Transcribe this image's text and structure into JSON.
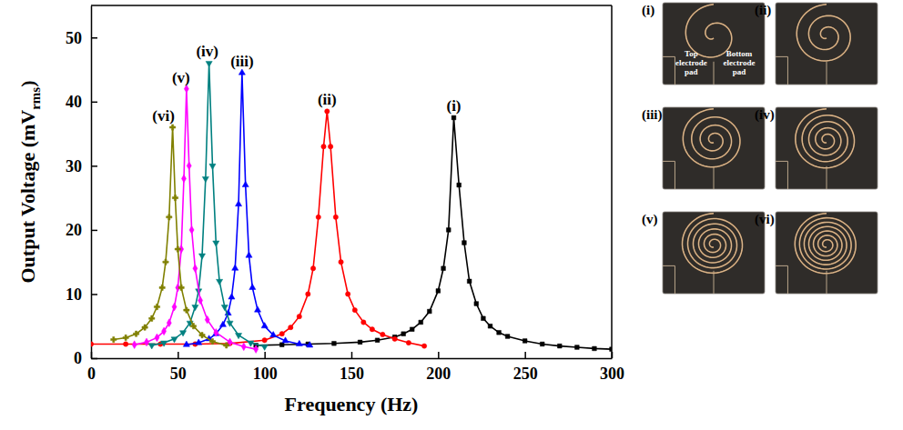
{
  "chart_data": {
    "type": "line",
    "x_label": "Frequency (Hz)",
    "y_label": [
      "Output Voltage (mV",
      "rms",
      ")"
    ],
    "xlim": [
      0,
      300
    ],
    "xticks": [
      0,
      50,
      100,
      150,
      200,
      250,
      300
    ],
    "ylim": [
      0,
      55
    ],
    "yticks": [
      0,
      10,
      20,
      30,
      40,
      50
    ],
    "grid": false,
    "series": [
      {
        "name": "(i)",
        "color": "#000000",
        "marker": "square",
        "x": [
          95,
          110,
          125,
          140,
          155,
          165,
          175,
          180,
          185,
          190,
          195,
          200,
          203,
          206,
          209,
          212,
          215,
          218,
          222,
          226,
          230,
          235,
          240,
          250,
          260,
          270,
          280,
          290,
          300
        ],
        "values": [
          2.0,
          2.1,
          2.2,
          2.3,
          2.5,
          2.8,
          3.3,
          3.8,
          4.5,
          5.6,
          7.3,
          10.5,
          14,
          20,
          37.5,
          27,
          18,
          12,
          8.5,
          6.2,
          5,
          4,
          3.4,
          2.7,
          2.2,
          1.9,
          1.7,
          1.5,
          1.4
        ]
      },
      {
        "name": "(ii)",
        "color": "#ff0000",
        "marker": "circle",
        "x": [
          0,
          20,
          40,
          60,
          80,
          100,
          110,
          115,
          120,
          125,
          128,
          131,
          134,
          136,
          138,
          141,
          144,
          148,
          152,
          157,
          162,
          168,
          175,
          183,
          192
        ],
        "values": [
          2.2,
          2.2,
          2.2,
          2.2,
          2.3,
          2.8,
          3.8,
          4.8,
          6.5,
          10,
          14,
          22,
          33,
          38.5,
          33,
          22,
          15,
          10,
          7.5,
          5.6,
          4.5,
          3.7,
          3,
          2.4,
          1.9
        ]
      },
      {
        "name": "(iii)",
        "color": "#0000ff",
        "marker": "triangle-up",
        "x": [
          55,
          62,
          68,
          72,
          76,
          79,
          81,
          83,
          85,
          87,
          89,
          91,
          93,
          96,
          100,
          105,
          112,
          120,
          126
        ],
        "values": [
          2.1,
          2.4,
          3,
          3.8,
          5.2,
          7,
          9.5,
          14,
          24,
          44.5,
          27,
          16,
          11,
          7.5,
          5,
          3.6,
          2.7,
          2.2,
          2.0
        ]
      },
      {
        "name": "(iv)",
        "color": "#008080",
        "marker": "triangle-down",
        "x": [
          35,
          42,
          48,
          53,
          57,
          60,
          62,
          64,
          66,
          68,
          70,
          72,
          74,
          77,
          80,
          85,
          92,
          100
        ],
        "values": [
          2.0,
          2.4,
          3,
          4,
          5.5,
          8,
          10.5,
          16,
          28,
          46,
          30,
          18,
          12,
          8,
          5.5,
          3.6,
          2.4,
          1.8
        ]
      },
      {
        "name": "(v)",
        "color": "#ff00ff",
        "marker": "diamond",
        "x": [
          25,
          32,
          38,
          42,
          45,
          48,
          50,
          52,
          53.5,
          55,
          56.5,
          58,
          60,
          63,
          67,
          72,
          80,
          88,
          95
        ],
        "values": [
          2.1,
          2.5,
          3.2,
          4.2,
          5.5,
          8,
          11,
          17,
          28,
          42,
          30,
          20,
          14,
          9,
          6,
          4,
          2.5,
          1.8,
          1.4
        ]
      },
      {
        "name": "(vi)",
        "color": "#808000",
        "marker": "cross",
        "x": [
          13,
          20,
          26,
          31,
          35,
          38,
          41,
          43,
          45,
          47,
          48.5,
          50,
          52,
          55,
          59,
          64,
          70,
          78
        ],
        "values": [
          2.9,
          3.2,
          3.8,
          4.8,
          6.2,
          8,
          11,
          15,
          22,
          36,
          25,
          17,
          11,
          7.5,
          5,
          3.6,
          2.6,
          2
        ]
      }
    ]
  },
  "photos": {
    "labels": [
      "(i)",
      "(ii)",
      "(iii)",
      "(iv)",
      "(v)",
      "(vi)"
    ],
    "annotations": [
      "Top electrode pad",
      "Bottom electrode pad"
    ]
  }
}
